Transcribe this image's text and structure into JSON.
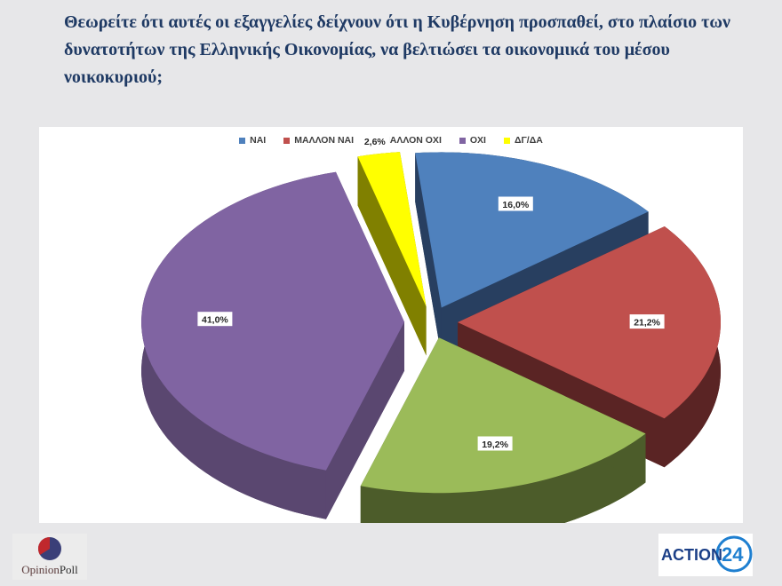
{
  "question": "Θεωρείτε ότι αυτές οι εξαγγελίες δείχνουν ότι η Κυβέρνηση προσπαθεί, στο πλαίσιο των δυνατοτήτων της Ελληνικής Οικονομίας, να βελτιώσει τα οικονομικά του μέσου νοικοκυριού;",
  "chart_data": {
    "type": "pie",
    "three_d": true,
    "exploded": true,
    "title": "",
    "legend_position": "top",
    "categories": [
      "ΝΑΙ",
      "ΜΑΛΛΟΝ ΝΑΙ",
      "ΜΑΛΛΟΝ ΟΧΙ",
      "ΟΧΙ",
      "ΔΓ/ΔΑ"
    ],
    "values": [
      16.0,
      21.2,
      19.2,
      41.0,
      2.6
    ],
    "labels": [
      "16,0%",
      "21,2%",
      "19,2%",
      "41,0%",
      "2,6%"
    ],
    "colors": [
      "#4f81bd",
      "#c0504d",
      "#9bbb59",
      "#8064a2",
      "#ffff00"
    ],
    "side_colors": [
      "#283f60",
      "#5a2424",
      "#4c5c2a",
      "#5a4770",
      "#808000"
    ]
  },
  "logos": {
    "left_part1": "Opinion",
    "left_part2": "Poll",
    "right_text": "ACTION",
    "right_number": "24"
  }
}
